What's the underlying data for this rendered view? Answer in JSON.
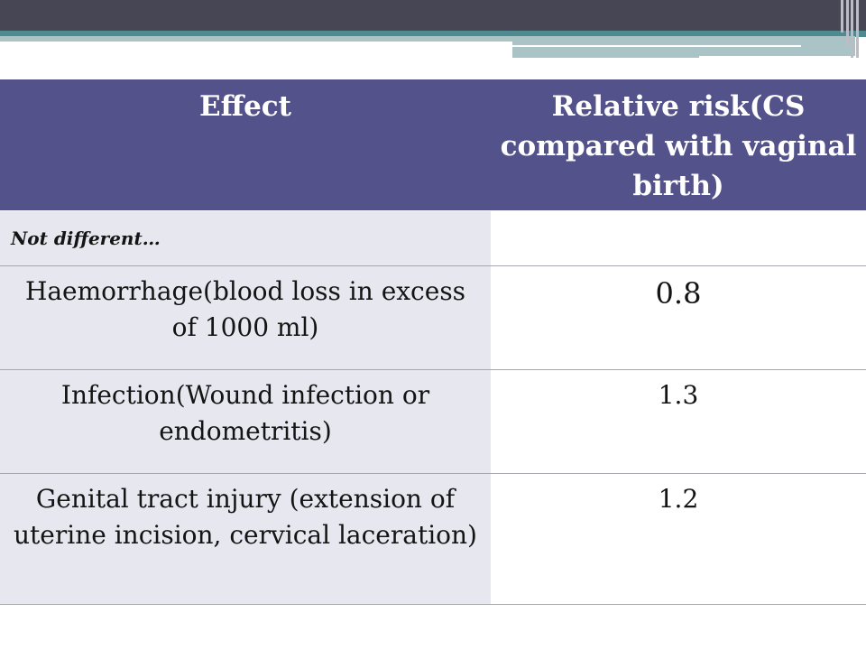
{
  "table": {
    "header": {
      "effect": "Effect",
      "risk": "Relative risk(CS compared with vaginal birth)"
    },
    "subheading": "Not different…",
    "rows": [
      {
        "effect": "Haemorrhage(blood loss in excess of 1000 ml)",
        "risk": "0.8"
      },
      {
        "effect": "Infection(Wound infection or endometritis)",
        "risk": "1.3"
      },
      {
        "effect": "Genital tract injury (extension of uterine incision, cervical laceration)",
        "risk": "1.2"
      }
    ]
  },
  "colors": {
    "header_bg": "#53528a",
    "header_text": "#ffffff",
    "band_dark": "#464655",
    "band_teal": "#4e8a8f",
    "band_teal_light": "#a9c3c6",
    "effect_column_bg": "#e7e7ef"
  }
}
